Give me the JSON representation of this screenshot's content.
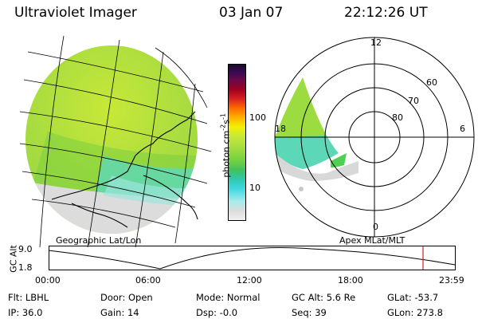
{
  "header": {
    "title": "Ultraviolet Imager",
    "date": "03 Jan 07",
    "time": "22:12:26 UT"
  },
  "colorbar": {
    "label_html": "photon cm⁻²s⁻¹",
    "unit": "photon cm",
    "ticks": [
      "100",
      "10"
    ]
  },
  "polar": {
    "mlt_labels": [
      "12",
      "18",
      "6",
      "0"
    ],
    "lat_labels": [
      "60",
      "70",
      "80"
    ]
  },
  "panels": {
    "left_caption": "Geographic Lat/Lon",
    "right_caption": "Apex MLat/MLT"
  },
  "altitude_plot": {
    "ylabel": "GC Alt",
    "yticks": [
      "9.0",
      "1.8"
    ],
    "xticks": [
      "00:00",
      "06:00",
      "12:00",
      "18:00",
      "23:59"
    ]
  },
  "info": {
    "flt": "Flt: LBHL",
    "ip": "IP: 36.0",
    "door": "Door: Open",
    "gain": "Gain: 14",
    "mode": "Mode: Normal",
    "dsp": "Dsp:   -0.0",
    "gcalt": "GC Alt: 5.6 Re",
    "seq": "Seq: 39",
    "glat": "GLat: -53.7",
    "glon": "GLon: 273.8"
  },
  "colors": {
    "marker": "#d02020",
    "globe_main": "#b0e040",
    "globe_green": "#7cd040",
    "globe_cyan": "#50d8c0",
    "globe_gray": "#d8d8d8"
  }
}
